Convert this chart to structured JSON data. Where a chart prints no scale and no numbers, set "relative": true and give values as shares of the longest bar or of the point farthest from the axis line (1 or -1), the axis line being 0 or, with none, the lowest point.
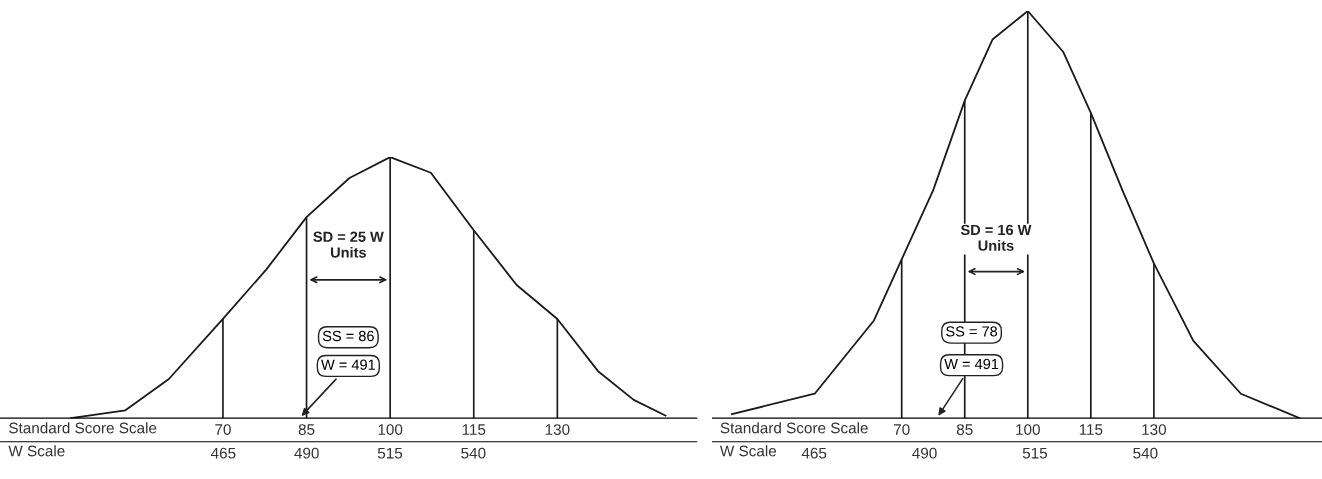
{
  "chart_data": [
    {
      "type": "line",
      "relative": true,
      "x": [
        42.7,
        52.5,
        60.3,
        70,
        77.8,
        85,
        92.7,
        100,
        107.3,
        115,
        122.7,
        130,
        137.3,
        143.7,
        149.4
      ],
      "series": [
        {
          "color": "#1a1a1a",
          "values": [
            0,
            0.03,
            0.15,
            0.38,
            0.57,
            0.77,
            0.92,
            1,
            0.94,
            0.72,
            0.51,
            0.38,
            0.18,
            0.07,
            0.01
          ]
        }
      ],
      "xlim": [
        30,
        155
      ],
      "xticks": [
        70,
        85,
        100,
        115,
        130
      ],
      "xlabel": "Standard Score Scale",
      "x2lim": [
        398,
        607
      ],
      "x2ticks": [
        465,
        490,
        515,
        540
      ],
      "x2label": "W Scale",
      "ref_lines": [
        {
          "axis": "x",
          "value": 70
        },
        {
          "axis": "x",
          "value": 85
        },
        {
          "axis": "x",
          "value": 100
        },
        {
          "axis": "x",
          "value": 115
        },
        {
          "axis": "x",
          "value": 130
        }
      ],
      "annotations": [
        "SD = 25 W\nUnits",
        "SS = 86",
        "W = 491"
      ],
      "grid": false,
      "legend": false,
      "marker": "none",
      "line_style": "solid"
    },
    {
      "type": "line",
      "relative": true,
      "x": [
        29.6,
        49.3,
        63.4,
        70,
        77.5,
        85,
        91.6,
        100,
        108.4,
        115,
        122.5,
        130,
        139.4,
        150.7,
        164.7
      ],
      "series": [
        {
          "color": "#1a1a1a",
          "values": [
            0.01,
            0.06,
            0.24,
            0.39,
            0.56,
            0.78,
            0.93,
            1,
            0.9,
            0.75,
            0.56,
            0.38,
            0.19,
            0.06,
            0
          ]
        }
      ],
      "xlim": [
        25,
        170
      ],
      "xticks": [
        70,
        85,
        100,
        115,
        130
      ],
      "xlabel": "Standard Score Scale",
      "x2lim": [
        442,
        580
      ],
      "x2ticks": [
        465,
        490,
        515,
        540
      ],
      "x2label": "W Scale",
      "ref_lines": [
        {
          "axis": "x",
          "value": 70
        },
        {
          "axis": "x",
          "value": 85
        },
        {
          "axis": "x",
          "value": 100
        },
        {
          "axis": "x",
          "value": 115
        },
        {
          "axis": "x",
          "value": 130
        }
      ],
      "annotations": [
        "SD = 16 W\nUnits",
        "SS = 78",
        "W = 491"
      ],
      "grid": false,
      "legend": false,
      "marker": "none",
      "line_style": "solid"
    }
  ]
}
